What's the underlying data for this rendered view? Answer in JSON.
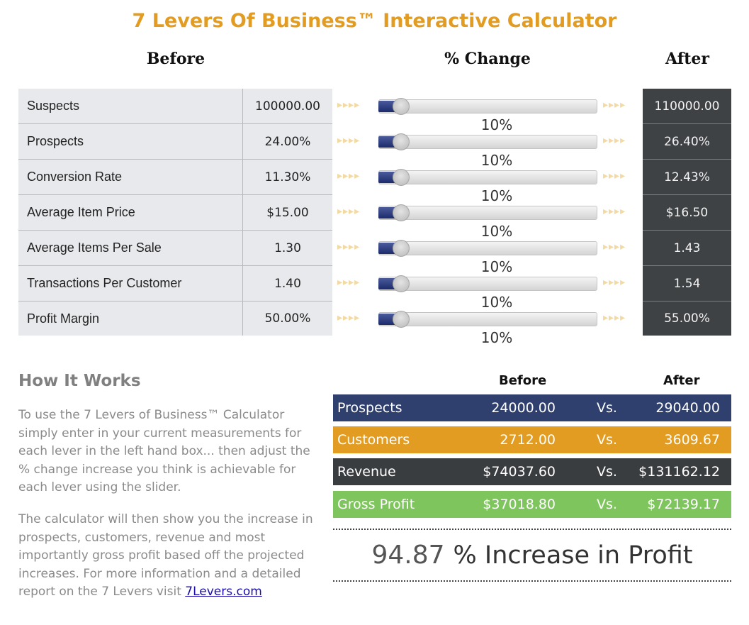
{
  "title": "7 Levers Of Business™ Interactive Calculator",
  "headers": {
    "before": "Before",
    "change": "% Change",
    "after": "After"
  },
  "levers": [
    {
      "label": "Suspects",
      "before": "100000.00",
      "change": "10%",
      "change_value": 0.1,
      "after": "110000.00"
    },
    {
      "label": "Prospects",
      "before": "24.00%",
      "change": "10%",
      "change_value": 0.1,
      "after": "26.40%"
    },
    {
      "label": "Conversion Rate",
      "before": "11.30%",
      "change": "10%",
      "change_value": 0.1,
      "after": "12.43%"
    },
    {
      "label": "Average Item Price",
      "before": "$15.00",
      "change": "10%",
      "change_value": 0.1,
      "after": "$16.50"
    },
    {
      "label": "Average Items Per Sale",
      "before": "1.30",
      "change": "10%",
      "change_value": 0.1,
      "after": "1.43"
    },
    {
      "label": "Transactions Per Customer",
      "before": "1.40",
      "change": "10%",
      "change_value": 0.1,
      "after": "1.54"
    },
    {
      "label": "Profit Margin",
      "before": "50.00%",
      "change": "10%",
      "change_value": 0.1,
      "after": "55.00%"
    }
  ],
  "how_it_works": {
    "title": "How It Works",
    "paragraph1": "To use the 7 Levers of Business™ Calculator simply enter in your current measurements for each lever in the left hand box... then adjust the % change increase you think is achievable for each lever using the slider.",
    "paragraph2": "The calculator will then show you the increase in prospects, customers, revenue and most importantly gross profit based off the projected increases. For more information and a detailed report on the 7 Levers visit ",
    "link_text": "7Levers.com"
  },
  "results": {
    "before_label": "Before",
    "after_label": "After",
    "vs_label": "Vs.",
    "rows": [
      {
        "label": "Prospects",
        "before": "24000.00",
        "after": "29040.00",
        "color": "#2f3f6e"
      },
      {
        "label": "Customers",
        "before": "2712.00",
        "after": "3609.67",
        "color": "#e39c22"
      },
      {
        "label": "Revenue",
        "before": "$74037.60",
        "after": "$131162.12",
        "color": "#3a3d40"
      },
      {
        "label": "Gross Profit",
        "before": "$37018.80",
        "after": "$72139.17",
        "color": "#7fc55e"
      }
    ]
  },
  "increase": {
    "value": "94.87",
    "label": "% Increase in Profit"
  },
  "colors": {
    "accent": "#e39c22",
    "slider_fill": "#1c2b6a"
  }
}
